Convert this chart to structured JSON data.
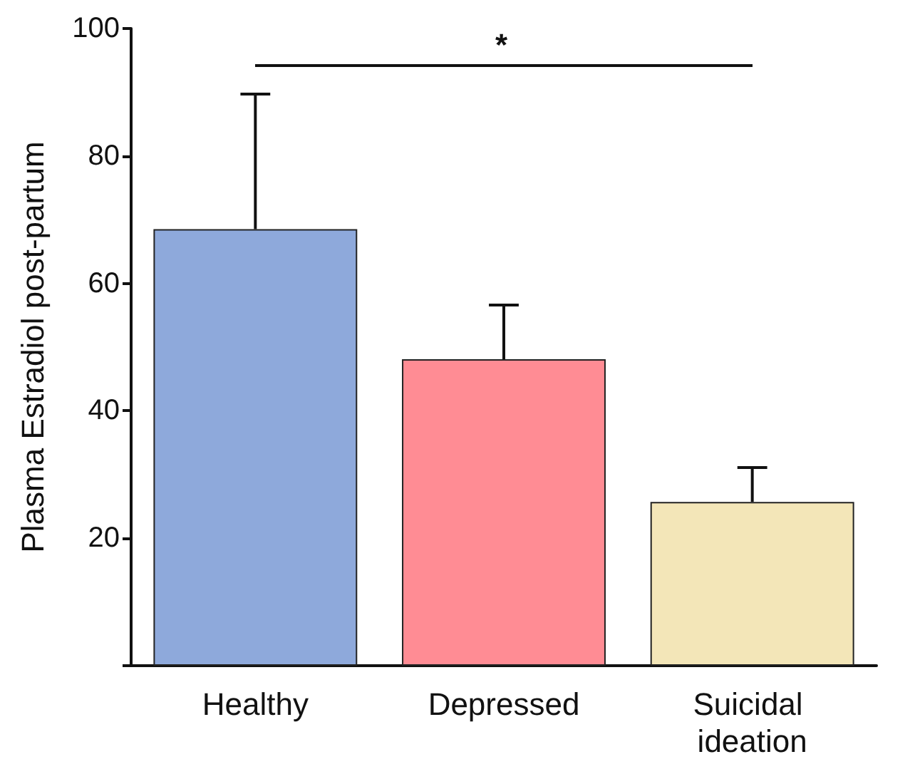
{
  "chart_data": {
    "type": "bar",
    "ylabel": "Plasma Estradiol post-partum",
    "categories": [
      "Healthy",
      "Depressed",
      "Suicidal ideation"
    ],
    "values": [
      68.5,
      48.1,
      25.7
    ],
    "colors": [
      "#8ea9db",
      "#ff8c94",
      "#f3e6b8"
    ],
    "errors": [
      [
        68.5,
        89.7
      ],
      [
        48.1,
        56.6
      ],
      [
        25.7,
        31.1
      ]
    ],
    "ylim": [
      0,
      100
    ],
    "yticks": [
      {
        "value": 0,
        "label": null
      },
      20,
      40,
      60,
      80,
      100
    ],
    "grid": false,
    "annotations": [
      "*"
    ]
  }
}
